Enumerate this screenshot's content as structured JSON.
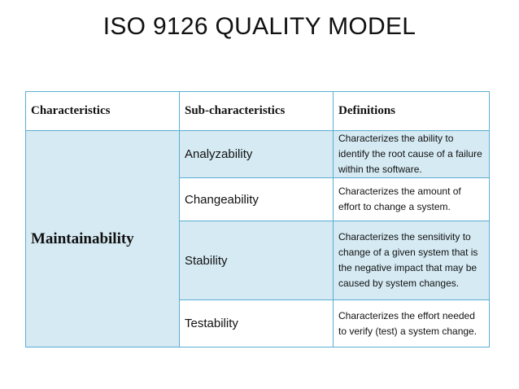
{
  "title": "ISO 9126 QUALITY MODEL",
  "table": {
    "headers": [
      "Characteristics",
      "Sub-characteristics",
      "Definitions"
    ],
    "characteristic": "Maintainability",
    "rows": [
      {
        "sub": "Analyzability",
        "definition": "Characterizes the ability to identify the root cause of a failure within the software."
      },
      {
        "sub": "Changeability",
        "definition": "Characterizes the amount of effort to change a system."
      },
      {
        "sub": "Stability",
        "definition": "Characterizes the sensitivity to change of a given system that is the negative impact that may be caused by system changes."
      },
      {
        "sub": "Testability",
        "definition": "Characterizes the effort needed to verify (test) a system change."
      }
    ]
  },
  "colors": {
    "border": "#5aaed1",
    "shade": "#d5eaf3"
  }
}
